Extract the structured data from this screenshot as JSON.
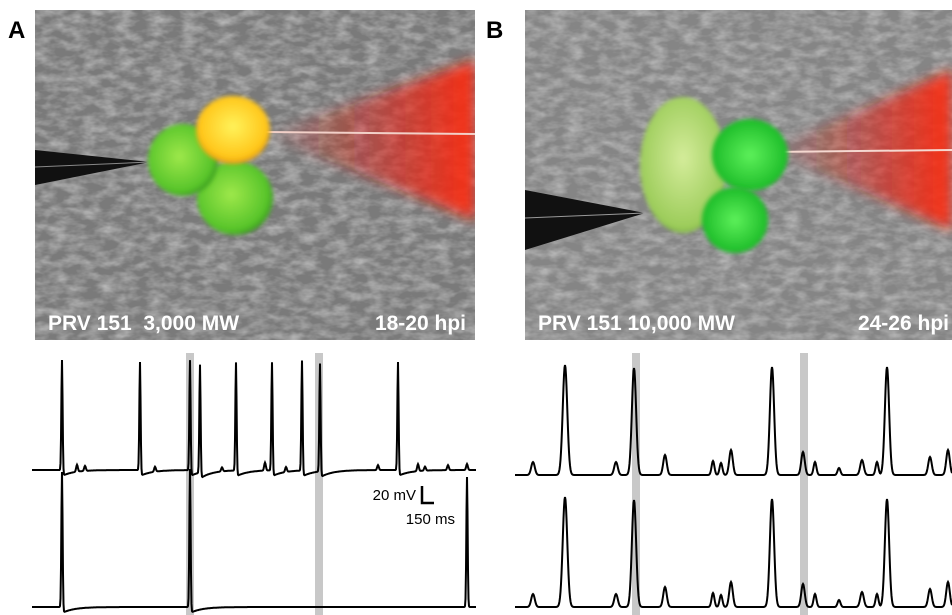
{
  "panels": [
    {
      "label": "A",
      "caption_left": "PRV 151  3,000 MW",
      "caption_right": "18-20 hpi"
    },
    {
      "label": "B",
      "caption_left": "PRV 151 10,000 MW",
      "caption_right": "24-26 hpi"
    }
  ],
  "scale_bar": {
    "voltage": "20 mV",
    "time": "150 ms"
  }
}
